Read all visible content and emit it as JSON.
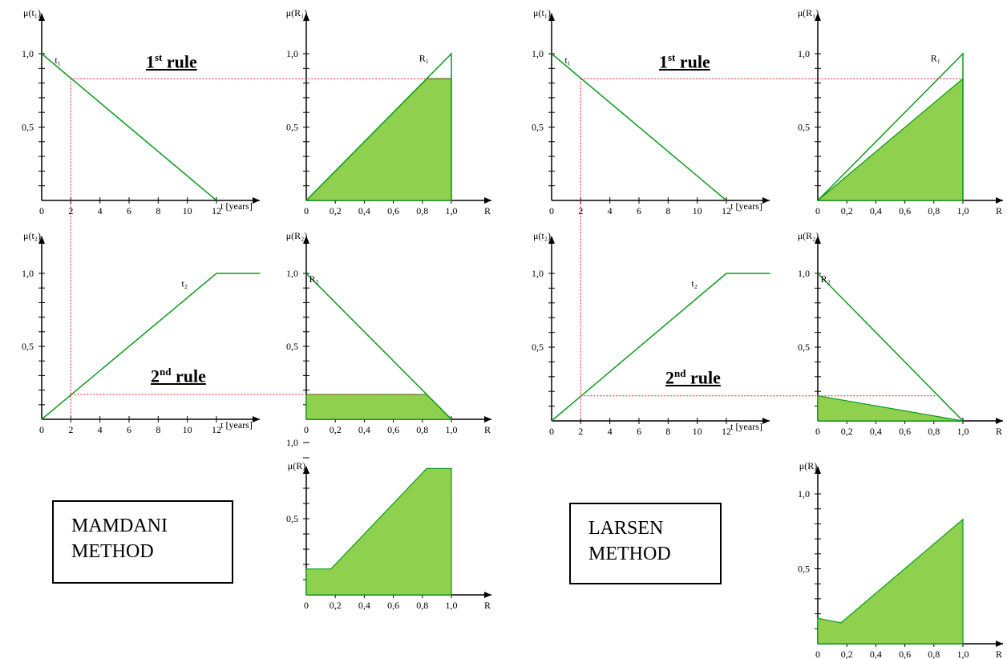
{
  "panels": {
    "mamdani_t1": {
      "ylabel": "μ(t₁)",
      "curve_label": "t₁",
      "x_ticks": [
        "0",
        "2",
        "4",
        "6",
        "8",
        "10",
        "12"
      ],
      "x_unit": "t [years]",
      "y_ticks": [
        "1,0",
        "0,5"
      ]
    },
    "mamdani_R1": {
      "ylabel": "μ(R₁)",
      "curve_label": "R₁",
      "x_ticks": [
        "0",
        "0,2",
        "0,4",
        "0,6",
        "0,8",
        "1,0"
      ],
      "x_unit": "R",
      "y_ticks": [
        "1,0",
        "0,5"
      ]
    },
    "mamdani_t2": {
      "ylabel": "μ(t₂)",
      "curve_label": "t₂",
      "x_ticks": [
        "0",
        "2",
        "4",
        "6",
        "8",
        "10",
        "12"
      ],
      "x_unit": "t [years]",
      "y_ticks": [
        "1,0",
        "0,5"
      ]
    },
    "mamdani_R2": {
      "ylabel": "μ(R₂)",
      "curve_label": "R₂",
      "x_ticks": [
        "0",
        "0,2",
        "0,4",
        "0,6",
        "0,8",
        "1,0"
      ],
      "x_unit": "R",
      "y_ticks": [
        "1,0",
        "0,5"
      ]
    },
    "mamdani_R": {
      "ylabel": "μ(R)",
      "curve_label": "",
      "x_ticks": [
        "0",
        "0,2",
        "0,4",
        "0,6",
        "0,8",
        "1,0"
      ],
      "x_unit": "R",
      "y_ticks": [
        "1,0",
        "0,5"
      ]
    },
    "larsen_t1": {
      "ylabel": "μ(t₁)",
      "curve_label": "t₁",
      "x_ticks": [
        "0",
        "2",
        "4",
        "6",
        "8",
        "10",
        "12"
      ],
      "x_unit": "t [years]",
      "y_ticks": [
        "1,0",
        "0,5"
      ]
    },
    "larsen_R1": {
      "ylabel": "μ(R₁)",
      "curve_label": "R₁",
      "x_ticks": [
        "0",
        "0,2",
        "0,4",
        "0,6",
        "0,8",
        "1,0"
      ],
      "x_unit": "R",
      "y_ticks": [
        "1,0",
        "0,5"
      ]
    },
    "larsen_t2": {
      "ylabel": "μ(t₂)",
      "curve_label": "t₂",
      "x_ticks": [
        "0",
        "2",
        "4",
        "6",
        "8",
        "10",
        "12"
      ],
      "x_unit": "t [years]",
      "y_ticks": [
        "1,0",
        "0,5"
      ]
    },
    "larsen_R2": {
      "ylabel": "μ(R₂)",
      "curve_label": "R₂",
      "x_ticks": [
        "0",
        "0,2",
        "0,4",
        "0,6",
        "0,8",
        "1,0"
      ],
      "x_unit": "R",
      "y_ticks": [
        "1,0",
        "0,5"
      ]
    },
    "larsen_R": {
      "ylabel": "μ(R)",
      "curve_label": "",
      "x_ticks": [
        "0",
        "0,2",
        "0,4",
        "0,6",
        "0,8",
        "1,0"
      ],
      "x_unit": "R",
      "y_ticks": [
        "1,0",
        "0,5"
      ]
    }
  },
  "rules": {
    "first_num": "1",
    "first_sup": "st",
    "first_word": "rule",
    "second_num": "2",
    "second_sup": "nd",
    "second_word": "rule"
  },
  "methods": {
    "mamdani_line1": "MAMDANI",
    "mamdani_line2": "METHOD",
    "larsen_line1": "LARSEN",
    "larsen_line2": "METHOD"
  },
  "membership": {
    "t1": {
      "x": [
        0,
        12
      ],
      "mu": [
        1.0,
        0.0
      ]
    },
    "t2": {
      "x": [
        0,
        12,
        15
      ],
      "mu": [
        0.0,
        1.0,
        1.0
      ]
    },
    "R1": {
      "x": [
        0,
        1.0
      ],
      "mu": [
        0.0,
        1.0
      ]
    },
    "R2": {
      "x": [
        0,
        1.0
      ],
      "mu": [
        1.0,
        0.0
      ]
    },
    "input_t": 2,
    "alpha1": 0.83,
    "alpha2": 0.17
  },
  "colors": {
    "curve": "#0b9a1b",
    "fill": "#8fd14f",
    "guide": "#e51c1c",
    "axis": "#000000"
  }
}
